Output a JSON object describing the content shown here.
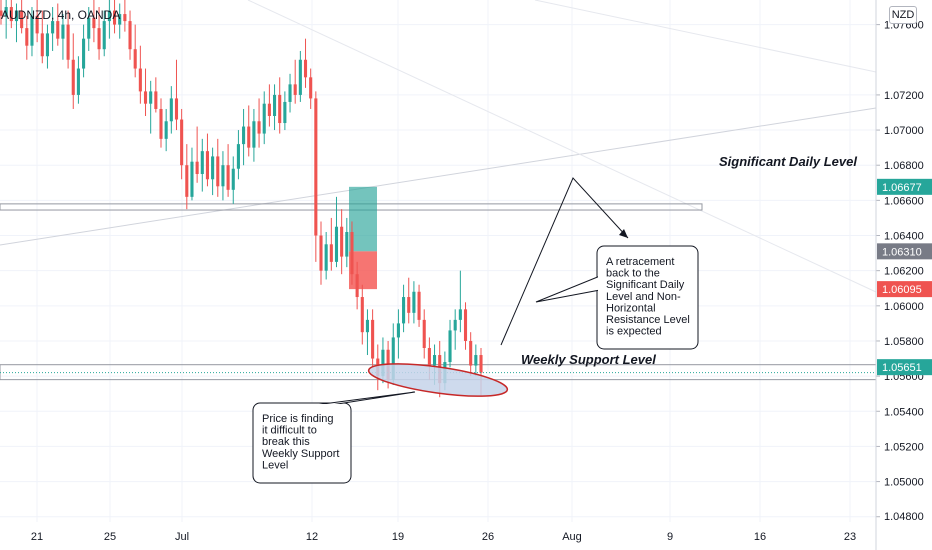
{
  "header": {
    "symbol_label": "AUDNZD, 4h, OANDA",
    "currency_label": "NZD"
  },
  "colors": {
    "up": "#26a69a",
    "down": "#ef5350",
    "grid": "#f0f3fa",
    "trendline": "#d1d4dc",
    "zone_border": "#9598a1",
    "ellipse_fill": "#c5d3ea",
    "ellipse_stroke": "#c62828",
    "long_target": "#2aa59a",
    "long_stop": "#f4534f",
    "badge_gray": "#787b86"
  },
  "chart_data": {
    "type": "candlestick",
    "title": "",
    "xlabel": "",
    "ylabel": "",
    "ylim": [
      1.0477,
      1.0774
    ],
    "x_ticks": [
      "21",
      "25",
      "Jul",
      "12",
      "19",
      "26",
      "Aug",
      "9",
      "16",
      "23"
    ],
    "y_ticks": [
      "1.07600",
      "1.07200",
      "1.07000",
      "1.06800",
      "1.06600",
      "1.06400",
      "1.06200",
      "1.06000",
      "1.05800",
      "1.05600",
      "1.05400",
      "1.05200",
      "1.05000",
      "1.04800"
    ],
    "price_badges": [
      {
        "label": "1.06677",
        "value": 1.06677,
        "color": "#26a69a"
      },
      {
        "label": "1.06310",
        "value": 1.0631,
        "color": "#787b86"
      },
      {
        "label": "1.06095",
        "value": 1.06095,
        "color": "#ef5350"
      },
      {
        "label": "1.05651",
        "value": 1.05651,
        "color": "#26a69a"
      }
    ],
    "levels": [
      {
        "name": "Significant Daily Level",
        "top": 1.0658,
        "bottom": 1.06545
      },
      {
        "name": "Weekly Support Level",
        "top": 1.05665,
        "bottom": 1.0558
      }
    ],
    "position": {
      "target": 1.06677,
      "entry": 1.0631,
      "stop": 1.06095
    },
    "annotations": [
      {
        "name": "retracement-note",
        "lines": [
          "A retracement",
          "back to the",
          "Significant Daily",
          "Level and Non-",
          "Horizontal",
          "Resistance Level",
          "is expected"
        ]
      },
      {
        "name": "support-note",
        "lines": [
          "Price is finding",
          "it difficult to",
          "break this",
          "Weekly Support",
          "Level"
        ]
      }
    ],
    "candles": [
      {
        "o": 1.0768,
        "h": 1.0776,
        "l": 1.076,
        "c": 1.0765
      },
      {
        "o": 1.0765,
        "h": 1.0774,
        "l": 1.0752,
        "c": 1.077
      },
      {
        "o": 1.077,
        "h": 1.0778,
        "l": 1.0758,
        "c": 1.0762
      },
      {
        "o": 1.0762,
        "h": 1.0772,
        "l": 1.075,
        "c": 1.0768
      },
      {
        "o": 1.0768,
        "h": 1.078,
        "l": 1.0755,
        "c": 1.0758
      },
      {
        "o": 1.0758,
        "h": 1.0765,
        "l": 1.074,
        "c": 1.0748
      },
      {
        "o": 1.0748,
        "h": 1.077,
        "l": 1.0742,
        "c": 1.0765
      },
      {
        "o": 1.0765,
        "h": 1.0775,
        "l": 1.075,
        "c": 1.0755
      },
      {
        "o": 1.0755,
        "h": 1.0768,
        "l": 1.0738,
        "c": 1.0742
      },
      {
        "o": 1.0742,
        "h": 1.076,
        "l": 1.0735,
        "c": 1.0755
      },
      {
        "o": 1.0755,
        "h": 1.077,
        "l": 1.0745,
        "c": 1.0762
      },
      {
        "o": 1.0762,
        "h": 1.0772,
        "l": 1.0748,
        "c": 1.0752
      },
      {
        "o": 1.0752,
        "h": 1.0766,
        "l": 1.074,
        "c": 1.076
      },
      {
        "o": 1.076,
        "h": 1.0768,
        "l": 1.0735,
        "c": 1.074
      },
      {
        "o": 1.074,
        "h": 1.0755,
        "l": 1.0712,
        "c": 1.072
      },
      {
        "o": 1.072,
        "h": 1.0742,
        "l": 1.0715,
        "c": 1.0735
      },
      {
        "o": 1.0735,
        "h": 1.076,
        "l": 1.073,
        "c": 1.0752
      },
      {
        "o": 1.0752,
        "h": 1.077,
        "l": 1.0745,
        "c": 1.0764
      },
      {
        "o": 1.0764,
        "h": 1.0776,
        "l": 1.075,
        "c": 1.0758
      },
      {
        "o": 1.0758,
        "h": 1.077,
        "l": 1.074,
        "c": 1.0746
      },
      {
        "o": 1.0746,
        "h": 1.0768,
        "l": 1.0742,
        "c": 1.0762
      },
      {
        "o": 1.0762,
        "h": 1.0774,
        "l": 1.0752,
        "c": 1.0768
      },
      {
        "o": 1.0768,
        "h": 1.0776,
        "l": 1.0755,
        "c": 1.076
      },
      {
        "o": 1.076,
        "h": 1.0772,
        "l": 1.0752,
        "c": 1.0766
      },
      {
        "o": 1.0766,
        "h": 1.0776,
        "l": 1.0756,
        "c": 1.0762
      },
      {
        "o": 1.0762,
        "h": 1.0768,
        "l": 1.074,
        "c": 1.0746
      },
      {
        "o": 1.0746,
        "h": 1.076,
        "l": 1.073,
        "c": 1.0735
      },
      {
        "o": 1.0735,
        "h": 1.0748,
        "l": 1.0715,
        "c": 1.0722
      },
      {
        "o": 1.0722,
        "h": 1.0735,
        "l": 1.0708,
        "c": 1.0715
      },
      {
        "o": 1.0715,
        "h": 1.0728,
        "l": 1.0698,
        "c": 1.0722
      },
      {
        "o": 1.0722,
        "h": 1.073,
        "l": 1.071,
        "c": 1.0712
      },
      {
        "o": 1.0712,
        "h": 1.0718,
        "l": 1.069,
        "c": 1.0695
      },
      {
        "o": 1.0695,
        "h": 1.0712,
        "l": 1.0688,
        "c": 1.0705
      },
      {
        "o": 1.0705,
        "h": 1.0725,
        "l": 1.0698,
        "c": 1.0718
      },
      {
        "o": 1.0718,
        "h": 1.074,
        "l": 1.07,
        "c": 1.0706
      },
      {
        "o": 1.0706,
        "h": 1.0712,
        "l": 1.0672,
        "c": 1.068
      },
      {
        "o": 1.068,
        "h": 1.0692,
        "l": 1.0655,
        "c": 1.0662
      },
      {
        "o": 1.0662,
        "h": 1.069,
        "l": 1.066,
        "c": 1.0682
      },
      {
        "o": 1.0682,
        "h": 1.0702,
        "l": 1.067,
        "c": 1.0675
      },
      {
        "o": 1.0675,
        "h": 1.0695,
        "l": 1.0665,
        "c": 1.0688
      },
      {
        "o": 1.0688,
        "h": 1.0698,
        "l": 1.0668,
        "c": 1.0672
      },
      {
        "o": 1.0672,
        "h": 1.069,
        "l": 1.0663,
        "c": 1.0685
      },
      {
        "o": 1.0685,
        "h": 1.0695,
        "l": 1.0662,
        "c": 1.0668
      },
      {
        "o": 1.0668,
        "h": 1.0688,
        "l": 1.066,
        "c": 1.068
      },
      {
        "o": 1.068,
        "h": 1.0692,
        "l": 1.0662,
        "c": 1.0666
      },
      {
        "o": 1.0666,
        "h": 1.0685,
        "l": 1.0658,
        "c": 1.0678
      },
      {
        "o": 1.0678,
        "h": 1.07,
        "l": 1.0672,
        "c": 1.0692
      },
      {
        "o": 1.0692,
        "h": 1.0712,
        "l": 1.068,
        "c": 1.0702
      },
      {
        "o": 1.0702,
        "h": 1.0714,
        "l": 1.0685,
        "c": 1.069
      },
      {
        "o": 1.069,
        "h": 1.0712,
        "l": 1.0682,
        "c": 1.0705
      },
      {
        "o": 1.0705,
        "h": 1.0718,
        "l": 1.069,
        "c": 1.0698
      },
      {
        "o": 1.0698,
        "h": 1.0722,
        "l": 1.0692,
        "c": 1.0715
      },
      {
        "o": 1.0715,
        "h": 1.0726,
        "l": 1.0702,
        "c": 1.0708
      },
      {
        "o": 1.0708,
        "h": 1.0726,
        "l": 1.07,
        "c": 1.072
      },
      {
        "o": 1.072,
        "h": 1.073,
        "l": 1.0698,
        "c": 1.0704
      },
      {
        "o": 1.0704,
        "h": 1.0722,
        "l": 1.07,
        "c": 1.0716
      },
      {
        "o": 1.0716,
        "h": 1.0732,
        "l": 1.071,
        "c": 1.0726
      },
      {
        "o": 1.0726,
        "h": 1.074,
        "l": 1.0715,
        "c": 1.072
      },
      {
        "o": 1.072,
        "h": 1.0745,
        "l": 1.0716,
        "c": 1.074
      },
      {
        "o": 1.074,
        "h": 1.0752,
        "l": 1.0724,
        "c": 1.073
      },
      {
        "o": 1.073,
        "h": 1.0735,
        "l": 1.0712,
        "c": 1.0718
      },
      {
        "o": 1.0718,
        "h": 1.0722,
        "l": 1.0625,
        "c": 1.064
      },
      {
        "o": 1.064,
        "h": 1.0648,
        "l": 1.0612,
        "c": 1.062
      },
      {
        "o": 1.062,
        "h": 1.0642,
        "l": 1.0615,
        "c": 1.0635
      },
      {
        "o": 1.0635,
        "h": 1.065,
        "l": 1.062,
        "c": 1.0625
      },
      {
        "o": 1.0625,
        "h": 1.0662,
        "l": 1.0622,
        "c": 1.0645
      },
      {
        "o": 1.0645,
        "h": 1.0655,
        "l": 1.0618,
        "c": 1.0628
      },
      {
        "o": 1.0628,
        "h": 1.065,
        "l": 1.0622,
        "c": 1.0642
      },
      {
        "o": 1.0642,
        "h": 1.0648,
        "l": 1.0612,
        "c": 1.0618
      },
      {
        "o": 1.0618,
        "h": 1.0625,
        "l": 1.0598,
        "c": 1.0605
      },
      {
        "o": 1.0605,
        "h": 1.0612,
        "l": 1.0578,
        "c": 1.0585
      },
      {
        "o": 1.0585,
        "h": 1.0598,
        "l": 1.0572,
        "c": 1.0592
      },
      {
        "o": 1.0592,
        "h": 1.0598,
        "l": 1.0565,
        "c": 1.057
      },
      {
        "o": 1.057,
        "h": 1.0578,
        "l": 1.0552,
        "c": 1.056
      },
      {
        "o": 1.056,
        "h": 1.0582,
        "l": 1.0556,
        "c": 1.0575
      },
      {
        "o": 1.0575,
        "h": 1.058,
        "l": 1.0553,
        "c": 1.0558
      },
      {
        "o": 1.0558,
        "h": 1.059,
        "l": 1.0555,
        "c": 1.0582
      },
      {
        "o": 1.0582,
        "h": 1.0598,
        "l": 1.057,
        "c": 1.059
      },
      {
        "o": 1.059,
        "h": 1.0612,
        "l": 1.0585,
        "c": 1.0605
      },
      {
        "o": 1.0605,
        "h": 1.0616,
        "l": 1.059,
        "c": 1.0596
      },
      {
        "o": 1.0596,
        "h": 1.0614,
        "l": 1.059,
        "c": 1.0608
      },
      {
        "o": 1.0608,
        "h": 1.0612,
        "l": 1.0588,
        "c": 1.0592
      },
      {
        "o": 1.0592,
        "h": 1.0598,
        "l": 1.057,
        "c": 1.0576
      },
      {
        "o": 1.0576,
        "h": 1.0582,
        "l": 1.0558,
        "c": 1.0566
      },
      {
        "o": 1.0566,
        "h": 1.0578,
        "l": 1.0555,
        "c": 1.0572
      },
      {
        "o": 1.0572,
        "h": 1.058,
        "l": 1.0548,
        "c": 1.0556
      },
      {
        "o": 1.0556,
        "h": 1.0574,
        "l": 1.0552,
        "c": 1.0568
      },
      {
        "o": 1.0568,
        "h": 1.0592,
        "l": 1.0565,
        "c": 1.0586
      },
      {
        "o": 1.0586,
        "h": 1.0598,
        "l": 1.0575,
        "c": 1.0592
      },
      {
        "o": 1.0592,
        "h": 1.062,
        "l": 1.0585,
        "c": 1.0598
      },
      {
        "o": 1.0598,
        "h": 1.0602,
        "l": 1.0575,
        "c": 1.058
      },
      {
        "o": 1.058,
        "h": 1.0585,
        "l": 1.056,
        "c": 1.0566
      },
      {
        "o": 1.0566,
        "h": 1.0578,
        "l": 1.056,
        "c": 1.0572
      },
      {
        "o": 1.0572,
        "h": 1.0576,
        "l": 1.0549,
        "c": 1.0562
      }
    ]
  }
}
